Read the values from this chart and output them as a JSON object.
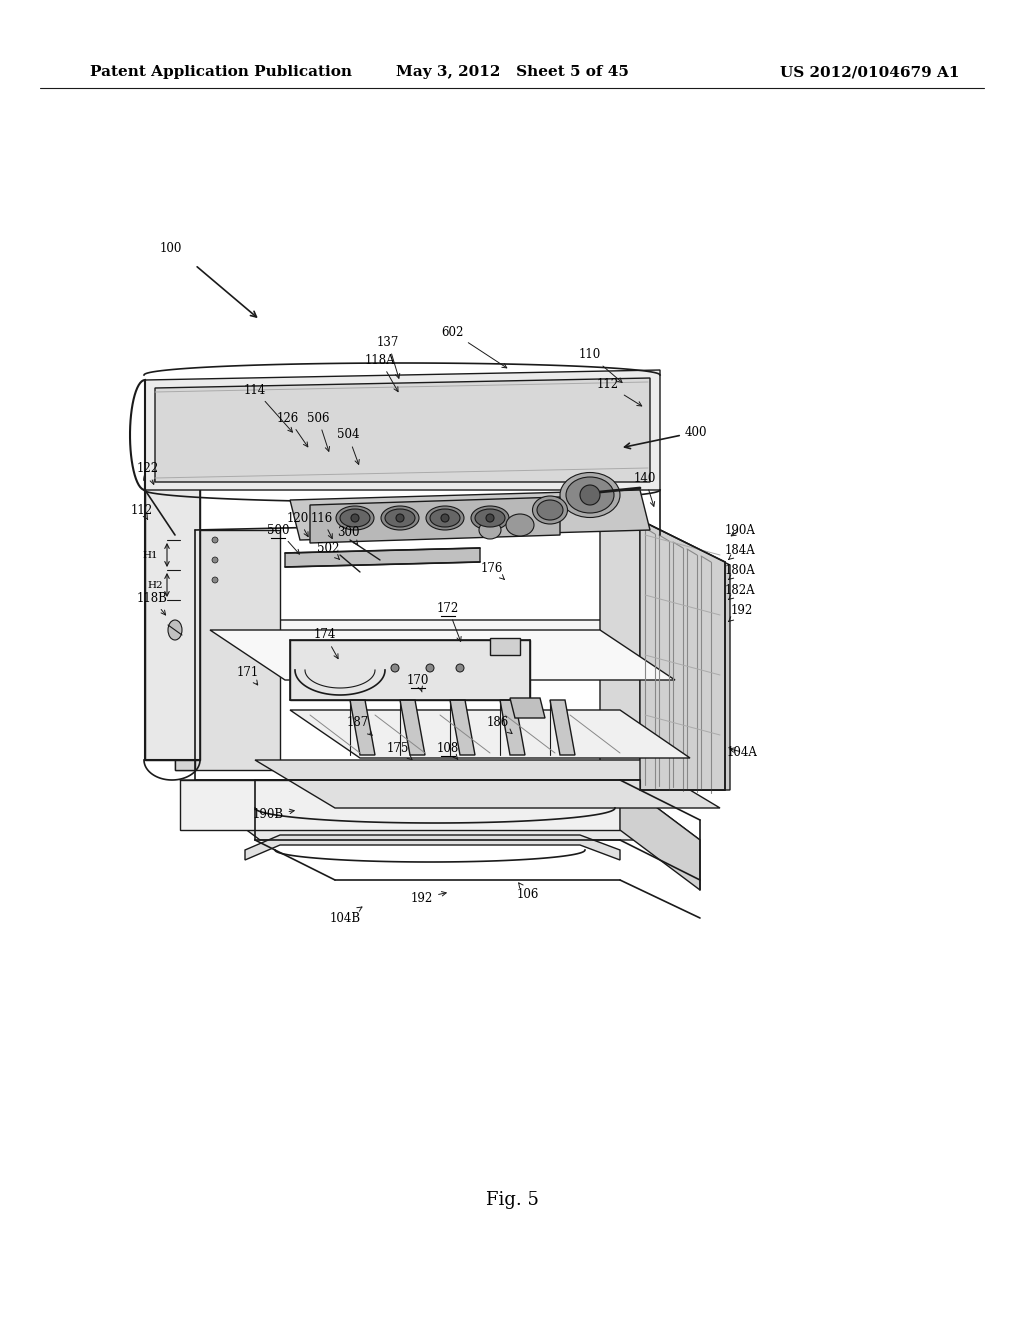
{
  "header_left": "Patent Application Publication",
  "header_mid": "May 3, 2012   Sheet 5 of 45",
  "header_right": "US 2012/0104679 A1",
  "footer_label": "Fig. 5",
  "bg_color": "#ffffff",
  "header_fontsize": 11,
  "footer_fontsize": 13,
  "label_fontsize": 8.5,
  "line_color": "#1a1a1a"
}
